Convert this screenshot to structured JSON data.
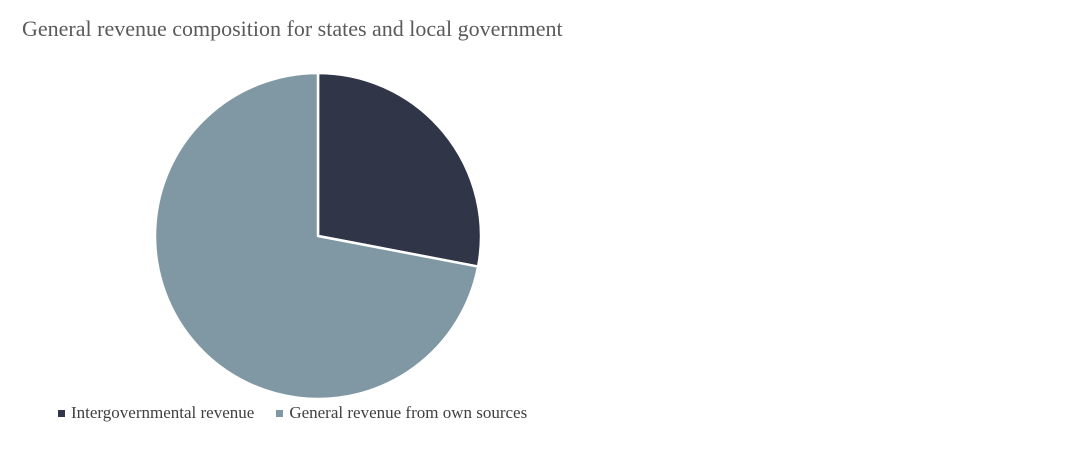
{
  "chart_data": {
    "type": "pie",
    "title": "General revenue composition for states and local government",
    "categories": [
      "Intergovernmental revenue",
      "General revenue from own sources"
    ],
    "values": [
      28,
      72
    ],
    "colors": [
      "#303647",
      "#7f98a3"
    ],
    "legend_position": "bottom-left",
    "start_angle_deg": 0,
    "direction": "clockwise"
  }
}
